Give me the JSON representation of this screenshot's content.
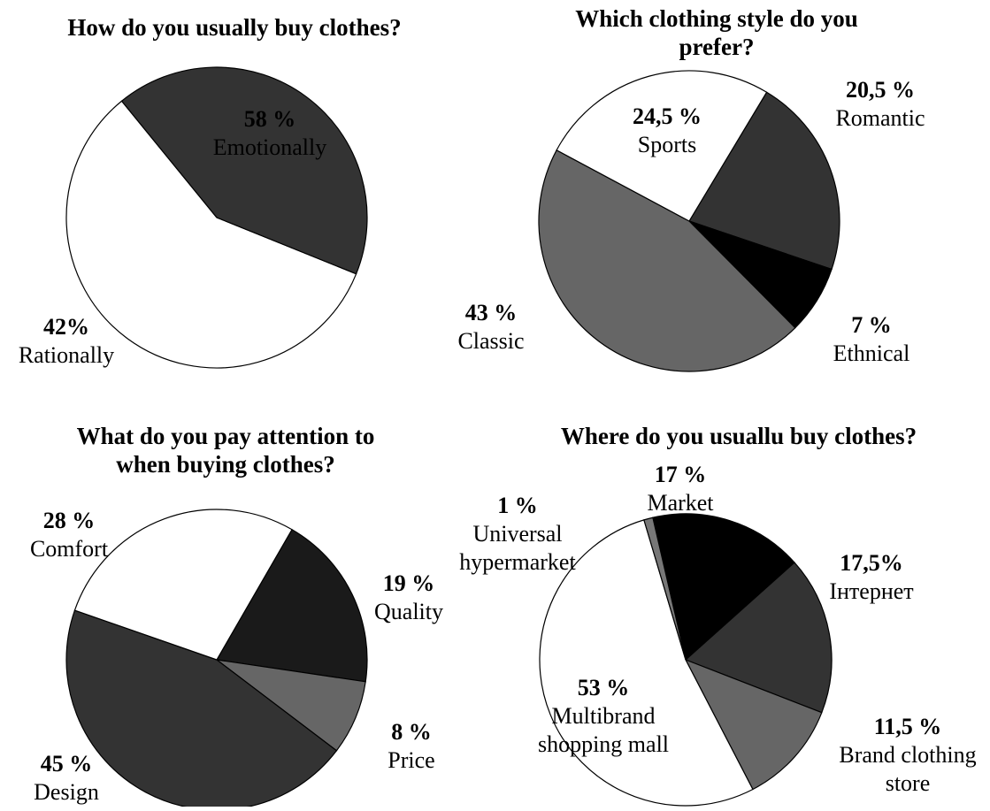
{
  "chart_data": [
    {
      "type": "pie",
      "title": [
        "How do you usually buy clothes?"
      ],
      "slices": [
        {
          "label": [
            "Emotionally"
          ],
          "pct_text": "58 %",
          "value": 58,
          "color": "#ffffff"
        },
        {
          "label": [
            "Rationally"
          ],
          "pct_text": "42%",
          "value": 42,
          "color": "#333333"
        }
      ]
    },
    {
      "type": "pie",
      "title": [
        "Which clothing style do you",
        "prefer?"
      ],
      "slices": [
        {
          "label": [
            "Romantic"
          ],
          "pct_text": "20,5 %",
          "value": 20.5,
          "color": "#333333"
        },
        {
          "label": [
            "Ethnical"
          ],
          "pct_text": "7 %",
          "value": 7,
          "color": "#000000"
        },
        {
          "label": [
            "Classic"
          ],
          "pct_text": "43 %",
          "value": 43,
          "color": "#666666"
        },
        {
          "label": [
            "Sports"
          ],
          "pct_text": "24,5 %",
          "value": 24.5,
          "color": "#ffffff"
        }
      ]
    },
    {
      "type": "pie",
      "title": [
        "What do you pay attention to",
        "when buying clothes?"
      ],
      "slices": [
        {
          "label": [
            "Quality"
          ],
          "pct_text": "19 %",
          "value": 19,
          "color": "#1a1a1a"
        },
        {
          "label": [
            "Price"
          ],
          "pct_text": "8 %",
          "value": 8,
          "color": "#666666"
        },
        {
          "label": [
            "Design"
          ],
          "pct_text": "45 %",
          "value": 45,
          "color": "#333333"
        },
        {
          "label": [
            "Comfort"
          ],
          "pct_text": "28 %",
          "value": 28,
          "color": "#ffffff"
        }
      ]
    },
    {
      "type": "pie",
      "title": [
        "Where do you usuallu buy clothes?"
      ],
      "slices": [
        {
          "label": [
            "Market"
          ],
          "pct_text": "17 %",
          "value": 17,
          "color": "#000000"
        },
        {
          "label": [
            "Інтернет"
          ],
          "pct_text": "17,5%",
          "value": 17.5,
          "color": "#333333"
        },
        {
          "label": [
            "Brand clothing",
            "store"
          ],
          "pct_text": "11,5 %",
          "value": 11.5,
          "color": "#666666"
        },
        {
          "label": [
            "Multibrand",
            "shopping mall"
          ],
          "pct_text": "53 %",
          "value": 53,
          "color": "#ffffff"
        },
        {
          "label": [
            "Universal",
            "hypermarket"
          ],
          "pct_text": "1 %",
          "value": 1,
          "color": "#777777"
        }
      ]
    }
  ]
}
